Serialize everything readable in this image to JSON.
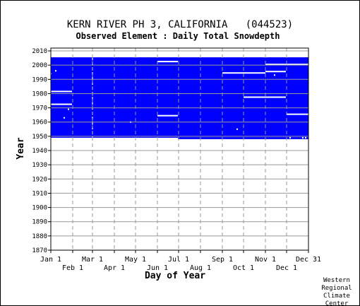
{
  "chart_data": {
    "type": "heatmap",
    "title": "KERN RIVER PH 3, CALIFORNIA   (044523)",
    "subtitle": "Observed Element : Daily Total Snowdepth",
    "xlabel": "Day of Year",
    "ylabel": "Year",
    "credit": [
      "Western",
      "Regional",
      "Climate",
      "Center"
    ],
    "colors": {
      "data": "#0000ff",
      "border": "#000000",
      "grid": "#999999",
      "background": "#ffffff"
    },
    "grid": true,
    "xlim": [
      1,
      366
    ],
    "ylim": [
      1870,
      2012
    ],
    "x_ticks_top_row": [
      {
        "day": 1,
        "label": "Jan 1"
      },
      {
        "day": 60,
        "label": "Mar 1"
      },
      {
        "day": 121,
        "label": "May 1"
      },
      {
        "day": 182,
        "label": "Jul 1"
      },
      {
        "day": 244,
        "label": "Sep 1"
      },
      {
        "day": 305,
        "label": "Nov 1"
      },
      {
        "day": 366,
        "label": "Dec 31"
      }
    ],
    "x_ticks_bottom_row": [
      {
        "day": 32,
        "label": "Feb 1"
      },
      {
        "day": 91,
        "label": "Apr 1"
      },
      {
        "day": 152,
        "label": "Jun 1"
      },
      {
        "day": 213,
        "label": "Aug 1"
      },
      {
        "day": 274,
        "label": "Oct 1"
      },
      {
        "day": 335,
        "label": "Dec 1"
      }
    ],
    "y_ticks": [
      2010,
      2000,
      1990,
      1980,
      1970,
      1960,
      1950,
      1940,
      1930,
      1920,
      1910,
      1900,
      1890,
      1880,
      1870
    ],
    "coverage": {
      "note": "Days with observed snow depth data shown in blue",
      "year_start": 1948,
      "year_end": 2005,
      "day_start": 1,
      "day_end": 366,
      "partial_first_year": {
        "year": 1948,
        "day_start": 181,
        "day_end": 366
      }
    },
    "missing_segments": [
      {
        "year": 2002.5,
        "day_start": 152,
        "day_end": 181
      },
      {
        "year": 2000.5,
        "day_start": 305,
        "day_end": 366
      },
      {
        "year": 1995.5,
        "day_start": 305,
        "day_end": 334
      },
      {
        "year": 1994.5,
        "day_start": 244,
        "day_end": 305
      },
      {
        "year": 1981.5,
        "day_start": 1,
        "day_end": 31
      },
      {
        "year": 1977.5,
        "day_start": 274,
        "day_end": 334
      },
      {
        "year": 1972.5,
        "day_start": 1,
        "day_end": 31
      },
      {
        "year": 1965.5,
        "day_start": 335,
        "day_end": 366
      },
      {
        "year": 1964.5,
        "day_start": 152,
        "day_end": 181
      }
    ],
    "missing_points": [
      {
        "year": 1996,
        "day": 8
      },
      {
        "year": 1994,
        "day": 1
      },
      {
        "year": 1969,
        "day": 26
      },
      {
        "year": 1963,
        "day": 20
      },
      {
        "year": 1960,
        "day": 114
      },
      {
        "year": 1955,
        "day": 265
      },
      {
        "year": 1993,
        "day": 318
      },
      {
        "year": 1949,
        "day": 340
      },
      {
        "year": 1949,
        "day": 358
      },
      {
        "year": 1949,
        "day": 362
      }
    ],
    "missing_columns": [
      {
        "day": 60,
        "year_start": 1948,
        "year_end": 2005
      }
    ]
  }
}
